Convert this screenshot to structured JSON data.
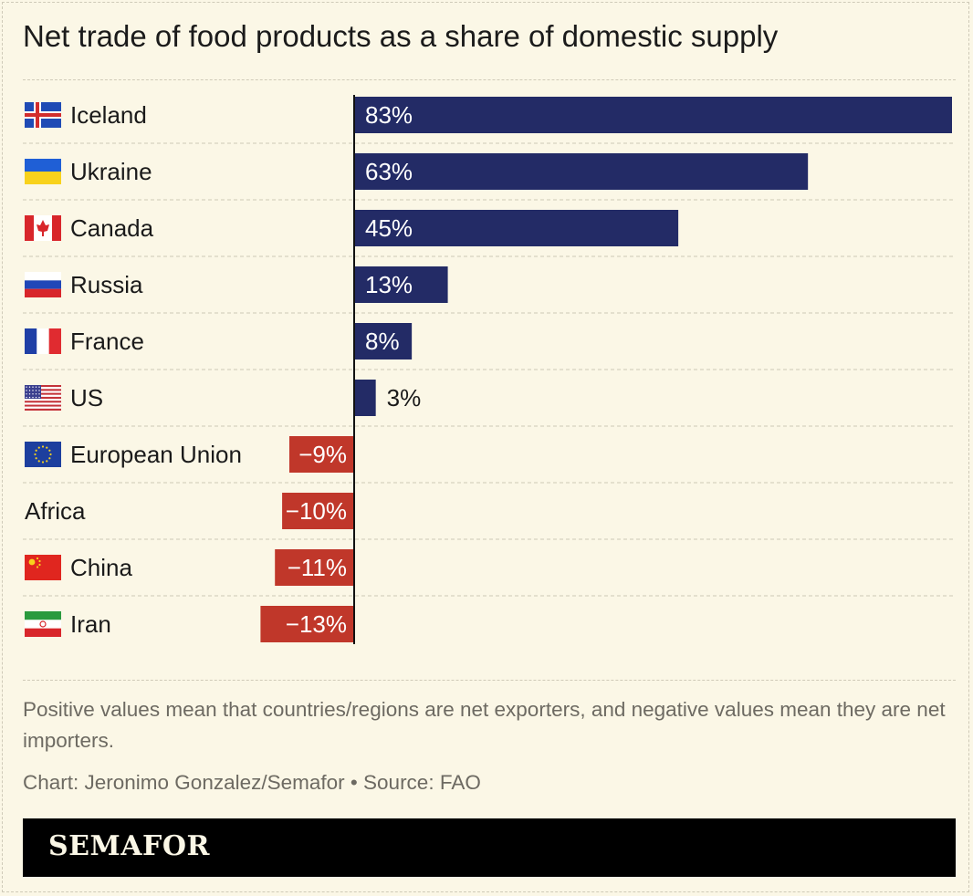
{
  "title": "Net trade of food products as a share of domestic supply",
  "notes": "Positive values mean that countries/regions are net exporters, and negative values mean they are net importers.",
  "credit": "Chart: Jeronimo Gonzalez/Semafor • Source: FAO",
  "brand": "SEMAFOR",
  "colors": {
    "background": "#fbf7e6",
    "positive": "#232b66",
    "negative": "#c0372a",
    "text": "#1a1a1a",
    "muted": "#6d6a62"
  },
  "chart_data": {
    "type": "bar",
    "orientation": "horizontal",
    "categories": [
      "Iceland",
      "Ukraine",
      "Canada",
      "Russia",
      "France",
      "US",
      "European Union",
      "Africa",
      "China",
      "Iran"
    ],
    "flags": [
      "iceland-flag",
      "ukraine-flag",
      "canada-flag",
      "russia-flag",
      "france-flag",
      "us-flag",
      "eu-flag",
      "",
      "china-flag",
      "iran-flag"
    ],
    "values": [
      83,
      63,
      45,
      13,
      8,
      3,
      -9,
      -10,
      -11,
      -13
    ],
    "labels": [
      "83%",
      "63%",
      "45%",
      "13%",
      "8%",
      "3%",
      "−9%",
      "−10%",
      "−11%",
      "−13%"
    ],
    "xlim": [
      -13,
      83
    ],
    "grid": false
  }
}
